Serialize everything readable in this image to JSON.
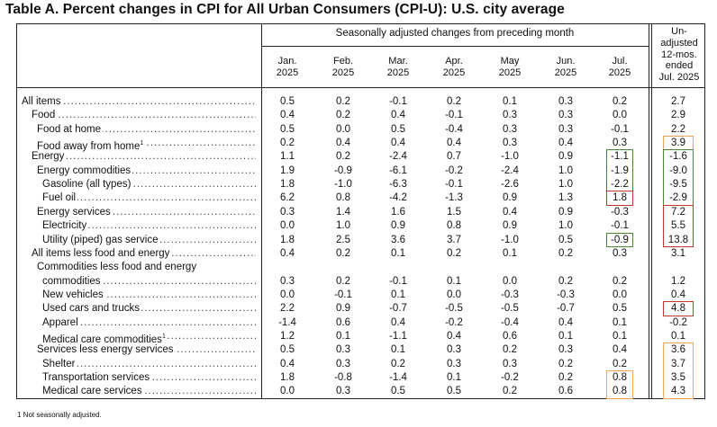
{
  "title": "Table A. Percent changes in CPI for All Urban Consumers (CPI-U): U.S. city average",
  "header": {
    "group_label": "Seasonally adjusted changes from preceding month",
    "months": [
      {
        "mon": "Jan.",
        "year": "2025"
      },
      {
        "mon": "Feb.",
        "year": "2025"
      },
      {
        "mon": "Mar.",
        "year": "2025"
      },
      {
        "mon": "Apr.",
        "year": "2025"
      },
      {
        "mon": "May",
        "year": "2025"
      },
      {
        "mon": "Jun.",
        "year": "2025"
      },
      {
        "mon": "Jul.",
        "year": "2025"
      }
    ],
    "unadjusted_lines": [
      "Un-",
      "adjusted",
      "12-mos.",
      "ended",
      "Jul. 2025"
    ]
  },
  "rows": [
    {
      "label": "All items",
      "indent": 0,
      "values": [
        "0.5",
        "0.2",
        "-0.1",
        "0.2",
        "0.1",
        "0.3",
        "0.2"
      ],
      "annual": "2.7"
    },
    {
      "label": "Food",
      "indent": 1,
      "values": [
        "0.4",
        "0.2",
        "0.4",
        "-0.1",
        "0.3",
        "0.3",
        "0.0"
      ],
      "annual": "2.9"
    },
    {
      "label": "Food at home",
      "indent": 2,
      "values": [
        "0.5",
        "0.0",
        "0.5",
        "-0.4",
        "0.3",
        "0.3",
        "-0.1"
      ],
      "annual": "2.2"
    },
    {
      "label": "Food away from home",
      "sup": "1",
      "indent": 2,
      "values": [
        "0.2",
        "0.4",
        "0.4",
        "0.4",
        "0.3",
        "0.4",
        "0.3"
      ],
      "annual": "3.9"
    },
    {
      "label": "Energy",
      "indent": 1,
      "values": [
        "1.1",
        "0.2",
        "-2.4",
        "0.7",
        "-1.0",
        "0.9",
        "-1.1"
      ],
      "annual": "-1.6"
    },
    {
      "label": "Energy commodities",
      "indent": 2,
      "values": [
        "1.9",
        "-0.9",
        "-6.1",
        "-0.2",
        "-2.4",
        "1.0",
        "-1.9"
      ],
      "annual": "-9.0"
    },
    {
      "label": "Gasoline (all types)",
      "indent": 3,
      "values": [
        "1.8",
        "-1.0",
        "-6.3",
        "-0.1",
        "-2.6",
        "1.0",
        "-2.2"
      ],
      "annual": "-9.5"
    },
    {
      "label": "Fuel oil",
      "indent": 3,
      "values": [
        "6.2",
        "0.8",
        "-4.2",
        "-1.3",
        "0.9",
        "1.3",
        "1.8"
      ],
      "annual": "-2.9"
    },
    {
      "label": "Energy services",
      "indent": 2,
      "values": [
        "0.3",
        "1.4",
        "1.6",
        "1.5",
        "0.4",
        "0.9",
        "-0.3"
      ],
      "annual": "7.2"
    },
    {
      "label": "Electricity",
      "indent": 3,
      "values": [
        "0.0",
        "1.0",
        "0.9",
        "0.8",
        "0.9",
        "1.0",
        "-0.1"
      ],
      "annual": "5.5"
    },
    {
      "label": "Utility (piped) gas service",
      "indent": 3,
      "values": [
        "1.8",
        "2.5",
        "3.6",
        "3.7",
        "-1.0",
        "0.5",
        "-0.9"
      ],
      "annual": "13.8"
    },
    {
      "label": "All items less food and energy",
      "indent": 1,
      "values": [
        "0.4",
        "0.2",
        "0.1",
        "0.2",
        "0.1",
        "0.2",
        "0.3"
      ],
      "annual": "3.1"
    },
    {
      "label": "Commodities less food and energy",
      "indent": 2,
      "nodots": true,
      "values": [
        "",
        "",
        "",
        "",
        "",
        "",
        ""
      ],
      "annual": ""
    },
    {
      "label": "commodities",
      "indent": 3,
      "values": [
        "0.3",
        "0.2",
        "-0.1",
        "0.1",
        "0.0",
        "0.2",
        "0.2"
      ],
      "annual": "1.2"
    },
    {
      "label": "New vehicles",
      "indent": 3,
      "values": [
        "0.0",
        "-0.1",
        "0.1",
        "0.0",
        "-0.3",
        "-0.3",
        "0.0"
      ],
      "annual": "0.4"
    },
    {
      "label": "Used cars and trucks",
      "indent": 3,
      "values": [
        "2.2",
        "0.9",
        "-0.7",
        "-0.5",
        "-0.5",
        "-0.7",
        "0.5"
      ],
      "annual": "4.8"
    },
    {
      "label": "Apparel",
      "indent": 3,
      "values": [
        "-1.4",
        "0.6",
        "0.4",
        "-0.2",
        "-0.4",
        "0.4",
        "0.1"
      ],
      "annual": "-0.2"
    },
    {
      "label": "Medical care commodities",
      "sup": "1",
      "indent": 3,
      "values": [
        "1.2",
        "0.1",
        "-1.1",
        "0.4",
        "0.6",
        "0.1",
        "0.1"
      ],
      "annual": "0.1"
    },
    {
      "label": "Services less energy services",
      "indent": 2,
      "values": [
        "0.5",
        "0.3",
        "0.1",
        "0.3",
        "0.2",
        "0.3",
        "0.4"
      ],
      "annual": "3.6"
    },
    {
      "label": "Shelter",
      "indent": 3,
      "values": [
        "0.4",
        "0.3",
        "0.2",
        "0.3",
        "0.3",
        "0.2",
        "0.2"
      ],
      "annual": "3.7"
    },
    {
      "label": "Transportation services",
      "indent": 3,
      "values": [
        "1.8",
        "-0.8",
        "-1.4",
        "0.1",
        "-0.2",
        "0.2",
        "0.8"
      ],
      "annual": "3.5"
    },
    {
      "label": "Medical care services",
      "indent": 3,
      "values": [
        "0.0",
        "0.3",
        "0.5",
        "0.5",
        "0.2",
        "0.6",
        "0.8"
      ],
      "annual": "4.3"
    }
  ],
  "highlights": [
    {
      "rows": [
        3,
        3
      ],
      "col": "annual",
      "color": "#f0a35a"
    },
    {
      "rows": [
        4,
        6
      ],
      "col": "jul",
      "color": "#4b8a2e"
    },
    {
      "rows": [
        4,
        7
      ],
      "col": "annual",
      "color": "#4b8a2e"
    },
    {
      "rows": [
        7,
        7
      ],
      "col": "jul",
      "color": "#c0392b"
    },
    {
      "rows": [
        8,
        10
      ],
      "col": "annual",
      "color": "#c0392b"
    },
    {
      "rows": [
        10,
        10
      ],
      "col": "jul",
      "color": "#4b8a2e"
    },
    {
      "rows": [
        15,
        15
      ],
      "col": "annual",
      "color": "#c0392b"
    },
    {
      "rows": [
        18,
        21
      ],
      "col": "annual",
      "color": "#f0a35a"
    },
    {
      "rows": [
        20,
        21
      ],
      "col": "jul",
      "color": "#f0a35a"
    }
  ],
  "footnote": "1  Not seasonally adjusted."
}
